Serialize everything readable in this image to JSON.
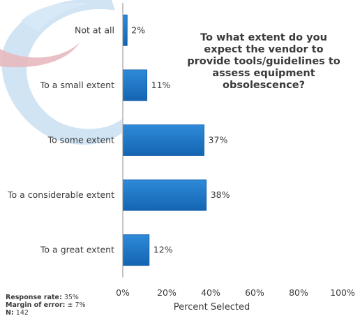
{
  "chart_data": {
    "type": "bar",
    "orientation": "horizontal",
    "title": "To what extent do you expect the vendor to provide tools/guidelines  to assess equipment obsolescence?",
    "categories": [
      "Not at all",
      "To a small extent",
      "To some extent",
      "To a considerable extent",
      "To a great extent"
    ],
    "values": [
      2,
      11,
      37,
      38,
      12
    ],
    "value_labels": [
      "2%",
      "11%",
      "37%",
      "38%",
      "12%"
    ],
    "xlabel": "Percent Selected",
    "ylabel": "",
    "xlim": [
      0,
      100
    ],
    "x_ticks": [
      "0%",
      "20%",
      "40%",
      "60%",
      "80%",
      "100%"
    ],
    "grid": false,
    "bar_color": "#1a75c6"
  },
  "notes": {
    "response_rate_label": "Response rate:",
    "response_rate_value": "35%",
    "margin_label": "Margin of error:",
    "margin_value": "± 7%",
    "n_label": "N:",
    "n_value": "142"
  }
}
